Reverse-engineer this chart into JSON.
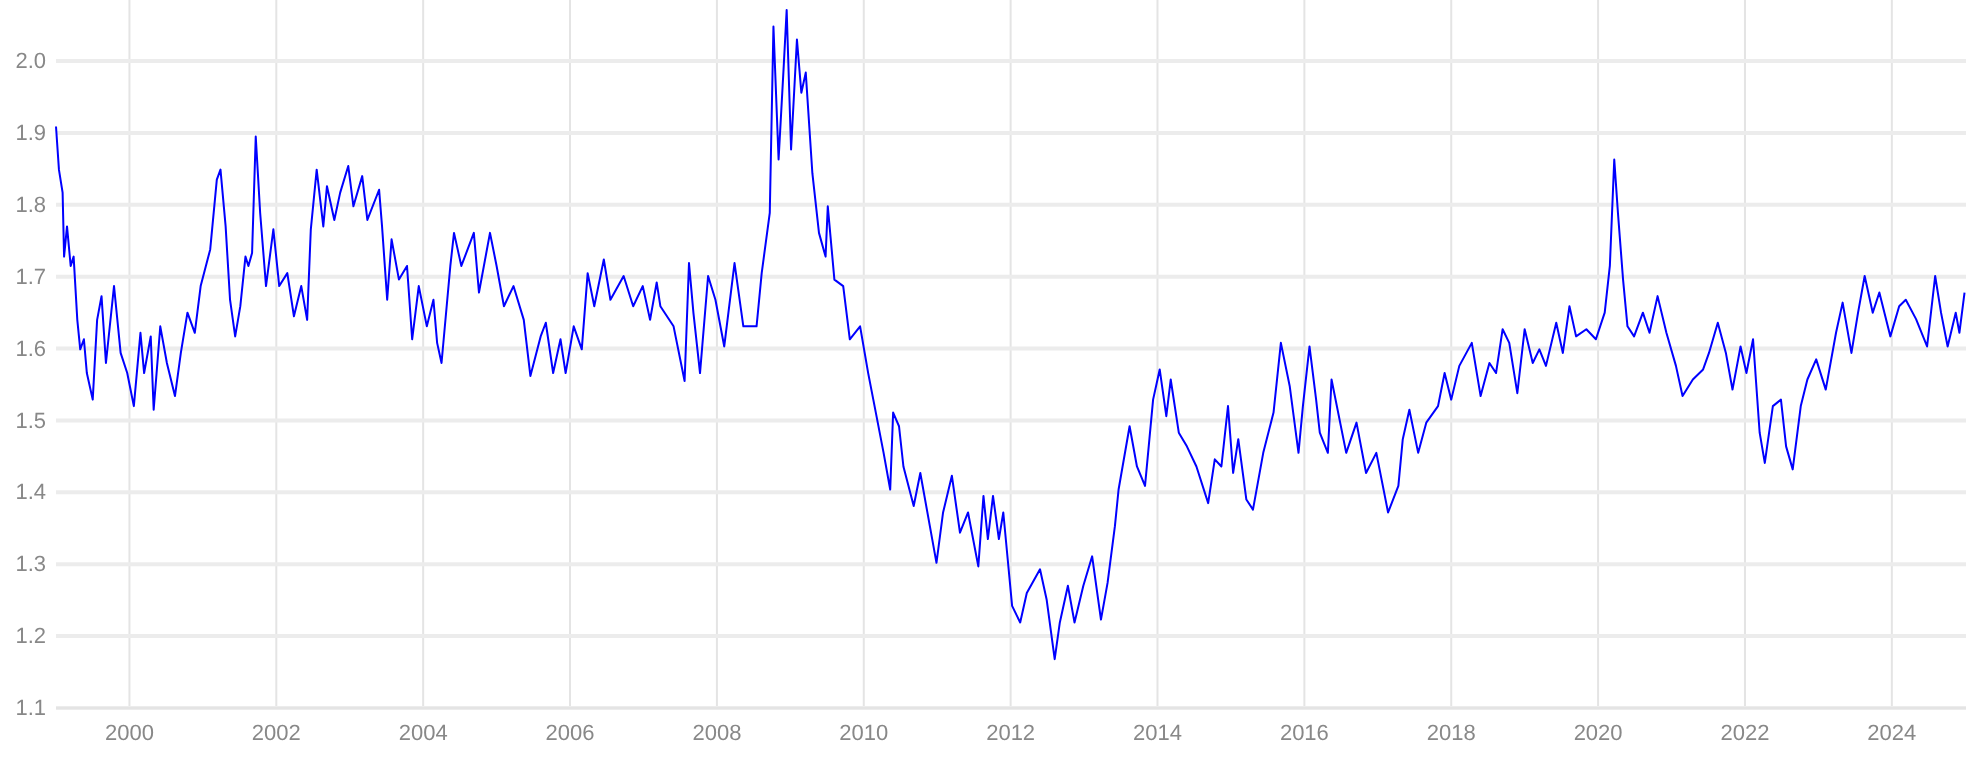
{
  "chart_data": {
    "type": "line",
    "x": [
      1999.0,
      1999.04,
      1999.09,
      1999.11,
      1999.15,
      1999.2,
      1999.24,
      1999.29,
      1999.33,
      1999.38,
      1999.42,
      1999.5,
      1999.56,
      1999.62,
      1999.68,
      1999.79,
      1999.88,
      1999.97,
      2000.06,
      2000.15,
      2000.2,
      2000.29,
      2000.33,
      2000.42,
      2000.51,
      2000.62,
      2000.7,
      2000.79,
      2000.89,
      2000.97,
      2001.1,
      2001.19,
      2001.24,
      2001.31,
      2001.37,
      2001.44,
      2001.51,
      2001.58,
      2001.62,
      2001.67,
      2001.72,
      2001.78,
      2001.86,
      2001.96,
      2002.04,
      2002.15,
      2002.24,
      2002.34,
      2002.42,
      2002.47,
      2002.55,
      2002.64,
      2002.69,
      2002.79,
      2002.87,
      2002.98,
      2003.05,
      2003.17,
      2003.24,
      2003.4,
      2003.44,
      2003.51,
      2003.57,
      2003.67,
      2003.78,
      2003.85,
      2003.94,
      2004.05,
      2004.14,
      2004.19,
      2004.25,
      2004.37,
      2004.42,
      2004.52,
      2004.69,
      2004.76,
      2004.91,
      2005.0,
      2005.1,
      2005.23,
      2005.37,
      2005.46,
      2005.6,
      2005.67,
      2005.77,
      2005.87,
      2005.94,
      2006.05,
      2006.16,
      2006.24,
      2006.33,
      2006.46,
      2006.55,
      2006.73,
      2006.86,
      2006.99,
      2007.09,
      2007.18,
      2007.23,
      2007.41,
      2007.56,
      2007.62,
      2007.68,
      2007.77,
      2007.88,
      2007.98,
      2008.1,
      2008.24,
      2008.36,
      2008.54,
      2008.61,
      2008.72,
      2008.77,
      2008.84,
      2008.91,
      2008.95,
      2009.01,
      2009.09,
      2009.15,
      2009.21,
      2009.3,
      2009.39,
      2009.48,
      2009.51,
      2009.6,
      2009.72,
      2009.81,
      2009.95,
      2010.06,
      2010.13,
      2010.27,
      2010.36,
      2010.4,
      2010.48,
      2010.54,
      2010.68,
      2010.77,
      2010.9,
      2010.99,
      2011.08,
      2011.2,
      2011.31,
      2011.42,
      2011.56,
      2011.63,
      2011.69,
      2011.76,
      2011.84,
      2011.9,
      2012.02,
      2012.13,
      2012.22,
      2012.4,
      2012.49,
      2012.6,
      2012.67,
      2012.78,
      2012.87,
      2012.99,
      2013.11,
      2013.23,
      2013.32,
      2013.42,
      2013.47,
      2013.62,
      2013.72,
      2013.83,
      2013.94,
      2014.03,
      2014.12,
      2014.18,
      2014.29,
      2014.4,
      2014.53,
      2014.69,
      2014.78,
      2014.87,
      2014.96,
      2015.03,
      2015.1,
      2015.21,
      2015.3,
      2015.44,
      2015.58,
      2015.68,
      2015.8,
      2015.92,
      2015.98,
      2016.07,
      2016.16,
      2016.21,
      2016.32,
      2016.37,
      2016.57,
      2016.71,
      2016.84,
      2016.98,
      2017.14,
      2017.28,
      2017.34,
      2017.43,
      2017.55,
      2017.66,
      2017.82,
      2017.91,
      2018.0,
      2018.11,
      2018.28,
      2018.4,
      2018.52,
      2018.61,
      2018.7,
      2018.79,
      2018.9,
      2019.0,
      2019.11,
      2019.2,
      2019.29,
      2019.43,
      2019.52,
      2019.61,
      2019.7,
      2019.84,
      2019.97,
      2020.09,
      2020.16,
      2020.22,
      2020.27,
      2020.34,
      2020.4,
      2020.49,
      2020.61,
      2020.7,
      2020.81,
      2020.93,
      2021.06,
      2021.15,
      2021.29,
      2021.43,
      2021.51,
      2021.63,
      2021.74,
      2021.83,
      2021.94,
      2022.02,
      2022.11,
      2022.2,
      2022.27,
      2022.38,
      2022.49,
      2022.56,
      2022.65,
      2022.76,
      2022.85,
      2022.97,
      2023.1,
      2023.24,
      2023.33,
      2023.45,
      2023.54,
      2023.63,
      2023.74,
      2023.83,
      2023.98,
      2024.1,
      2024.19,
      2024.33,
      2024.48,
      2024.59,
      2024.67,
      2024.76,
      2024.87,
      2024.92,
      2024.99
    ],
    "series": [
      {
        "color": "#0000ff",
        "values": [
          1.909,
          1.849,
          1.817,
          1.728,
          1.77,
          1.715,
          1.728,
          1.64,
          1.599,
          1.613,
          1.566,
          1.529,
          1.64,
          1.673,
          1.58,
          1.687,
          1.594,
          1.566,
          1.52,
          1.622,
          1.566,
          1.617,
          1.515,
          1.631,
          1.58,
          1.534,
          1.594,
          1.65,
          1.622,
          1.687,
          1.738,
          1.835,
          1.849,
          1.77,
          1.668,
          1.617,
          1.659,
          1.728,
          1.715,
          1.733,
          1.895,
          1.789,
          1.687,
          1.766,
          1.687,
          1.705,
          1.645,
          1.687,
          1.64,
          1.766,
          1.849,
          1.77,
          1.826,
          1.779,
          1.817,
          1.854,
          1.798,
          1.84,
          1.779,
          1.821,
          1.77,
          1.668,
          1.752,
          1.696,
          1.715,
          1.613,
          1.687,
          1.631,
          1.668,
          1.608,
          1.58,
          1.715,
          1.761,
          1.715,
          1.761,
          1.678,
          1.761,
          1.715,
          1.659,
          1.687,
          1.64,
          1.562,
          1.617,
          1.636,
          1.566,
          1.613,
          1.566,
          1.631,
          1.599,
          1.705,
          1.659,
          1.724,
          1.668,
          1.701,
          1.659,
          1.687,
          1.64,
          1.692,
          1.659,
          1.631,
          1.555,
          1.719,
          1.65,
          1.566,
          1.701,
          1.668,
          1.603,
          1.719,
          1.631,
          1.631,
          1.705,
          1.789,
          2.048,
          1.863,
          1.993,
          2.071,
          1.877,
          2.03,
          1.956,
          1.984,
          1.844,
          1.761,
          1.728,
          1.798,
          1.696,
          1.687,
          1.613,
          1.631,
          1.566,
          1.529,
          1.455,
          1.404,
          1.511,
          1.492,
          1.436,
          1.381,
          1.427,
          1.353,
          1.302,
          1.372,
          1.423,
          1.344,
          1.372,
          1.297,
          1.395,
          1.335,
          1.395,
          1.335,
          1.372,
          1.242,
          1.219,
          1.26,
          1.293,
          1.251,
          1.168,
          1.219,
          1.27,
          1.219,
          1.27,
          1.311,
          1.223,
          1.274,
          1.353,
          1.404,
          1.492,
          1.436,
          1.409,
          1.529,
          1.571,
          1.506,
          1.557,
          1.483,
          1.464,
          1.436,
          1.385,
          1.446,
          1.436,
          1.52,
          1.427,
          1.474,
          1.39,
          1.376,
          1.455,
          1.511,
          1.608,
          1.548,
          1.455,
          1.52,
          1.603,
          1.529,
          1.483,
          1.455,
          1.557,
          1.455,
          1.497,
          1.427,
          1.455,
          1.372,
          1.409,
          1.474,
          1.515,
          1.455,
          1.497,
          1.52,
          1.566,
          1.529,
          1.576,
          1.608,
          1.534,
          1.58,
          1.566,
          1.627,
          1.608,
          1.538,
          1.627,
          1.58,
          1.599,
          1.576,
          1.636,
          1.594,
          1.659,
          1.617,
          1.627,
          1.613,
          1.65,
          1.715,
          1.863,
          1.789,
          1.696,
          1.631,
          1.617,
          1.65,
          1.622,
          1.673,
          1.622,
          1.576,
          1.534,
          1.557,
          1.571,
          1.594,
          1.636,
          1.594,
          1.543,
          1.603,
          1.566,
          1.613,
          1.483,
          1.441,
          1.52,
          1.529,
          1.464,
          1.432,
          1.52,
          1.557,
          1.585,
          1.543,
          1.622,
          1.664,
          1.594,
          1.65,
          1.701,
          1.65,
          1.678,
          1.617,
          1.659,
          1.668,
          1.641,
          1.603,
          1.701,
          1.65,
          1.603,
          1.65,
          1.622,
          1.678
        ]
      }
    ],
    "xlim": [
      1999,
      2025.01
    ],
    "xticks": [
      2000,
      2002,
      2004,
      2006,
      2008,
      2010,
      2012,
      2014,
      2016,
      2018,
      2020,
      2022,
      2024
    ],
    "ylim": [
      1.1,
      2.085
    ],
    "yticks": [
      {
        "value": 1.1,
        "label": "1.1"
      },
      {
        "value": 1.2,
        "label": "1.2"
      },
      {
        "value": 1.3,
        "label": "1.3"
      },
      {
        "value": 1.4,
        "label": "1.4"
      },
      {
        "value": 1.5,
        "label": "1.5"
      },
      {
        "value": 1.6,
        "label": "1.6"
      },
      {
        "value": 1.7,
        "label": "1.7"
      },
      {
        "value": 1.8,
        "label": "1.8"
      },
      {
        "value": 1.9,
        "label": "1.9"
      },
      {
        "value": 2.0,
        "label": "2.0"
      }
    ],
    "grid": true,
    "line_style": "solid",
    "marker": "none"
  }
}
